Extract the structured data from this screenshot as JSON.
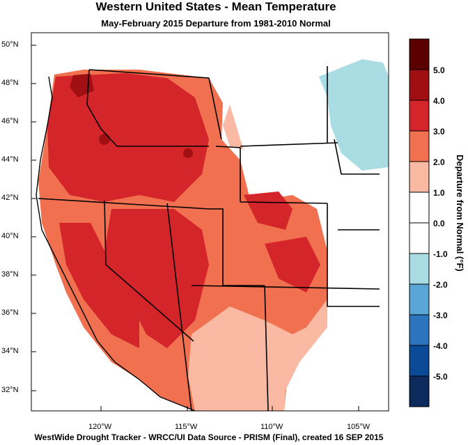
{
  "title": "Western United States - Mean Temperature",
  "subtitle": "May-February 2015  Departure from 1981-2010 Normal",
  "footer": "WestWide Drought Tracker - WRCC/UI  Data Source - PRISM (Final), created 16 SEP 2015",
  "lat_labels": [
    "50°N",
    "48°N",
    "46°N",
    "44°N",
    "42°N",
    "40°N",
    "38°N",
    "36°N",
    "34°N",
    "32°N"
  ],
  "lon_labels": [
    "120°W",
    "115°W",
    "110°W",
    "105°W"
  ],
  "colorbar": {
    "title": "Departure from Normal (°F)",
    "labels": [
      "5.0",
      "4.0",
      "3.0",
      "2.0",
      "1.0",
      "0.0",
      "-1.0",
      "-2.0",
      "-3.0",
      "-4.0",
      "-5.0"
    ],
    "colors": [
      "#5b0000",
      "#a00f12",
      "#d4252a",
      "#f0704f",
      "#f9b9a3",
      "#ffffff",
      "#ffffff",
      "#a9dde3",
      "#5aa6d6",
      "#2c74bd",
      "#0a4a97",
      "#0c2a5c"
    ]
  }
}
